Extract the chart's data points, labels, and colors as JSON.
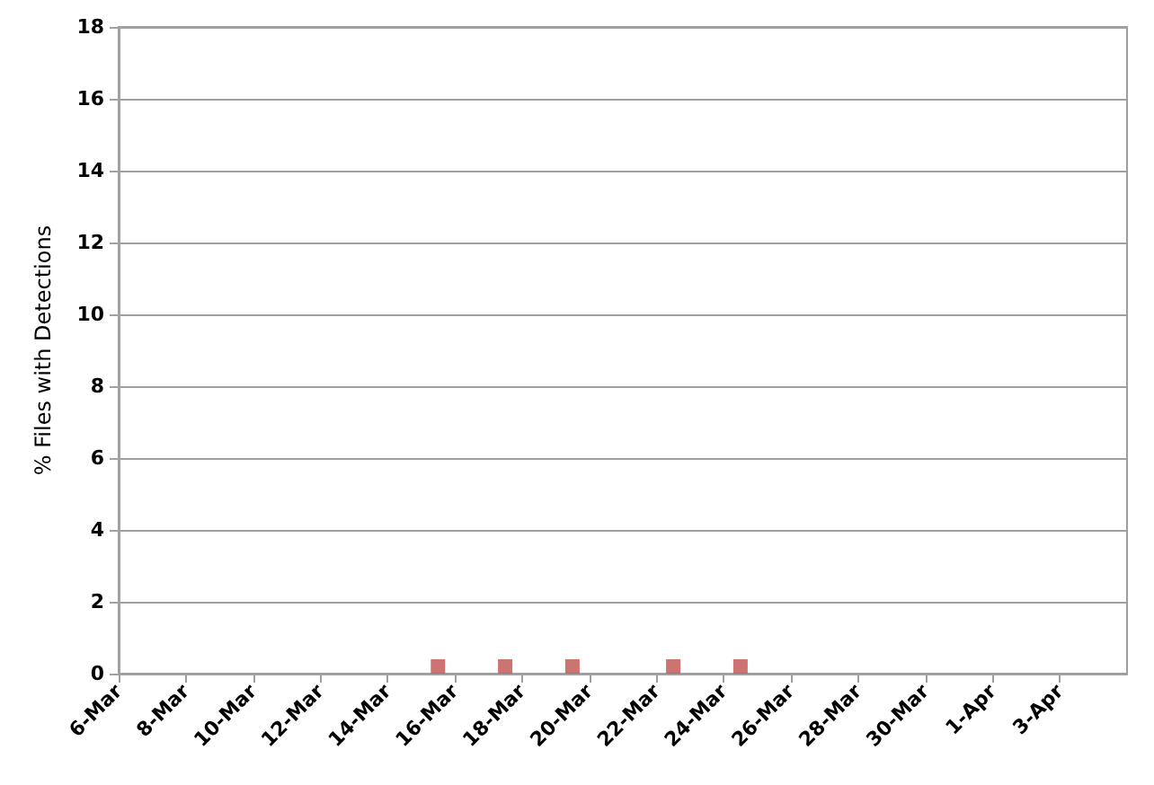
{
  "chart_data": {
    "type": "scatter",
    "ylabel": "% Files with Detections",
    "x": [
      "--03-15T12:00",
      "--03-17T12:00",
      "--03-19T12:00",
      "--03-22T12:00",
      "--03-24T12:00"
    ],
    "series": [
      {
        "color": "#c0504d",
        "values": [
          0.2,
          0.2,
          0.2,
          0.2,
          0.2
        ]
      }
    ],
    "xlim": [
      "--03-06",
      "--04-05"
    ],
    "xticks": [
      {
        "value": "--03-06",
        "label": "6-Mar"
      },
      {
        "value": "--03-08",
        "label": "8-Mar"
      },
      {
        "value": "--03-10",
        "label": "10-Mar"
      },
      {
        "value": "--03-12",
        "label": "12-Mar"
      },
      {
        "value": "--03-14",
        "label": "14-Mar"
      },
      {
        "value": "--03-16",
        "label": "16-Mar"
      },
      {
        "value": "--03-18",
        "label": "18-Mar"
      },
      {
        "value": "--03-20",
        "label": "20-Mar"
      },
      {
        "value": "--03-22",
        "label": "22-Mar"
      },
      {
        "value": "--03-24",
        "label": "24-Mar"
      },
      {
        "value": "--03-26",
        "label": "26-Mar"
      },
      {
        "value": "--03-28",
        "label": "28-Mar"
      },
      {
        "value": "--03-30",
        "label": "30-Mar"
      },
      {
        "value": "--04-01",
        "label": "1-Apr"
      },
      {
        "value": "--04-03",
        "label": "3-Apr"
      }
    ],
    "ylim": [
      0,
      18
    ],
    "yticks": [
      0,
      2,
      4,
      6,
      8,
      10,
      12,
      14,
      16,
      18
    ],
    "grid": "y",
    "marker": "square"
  }
}
